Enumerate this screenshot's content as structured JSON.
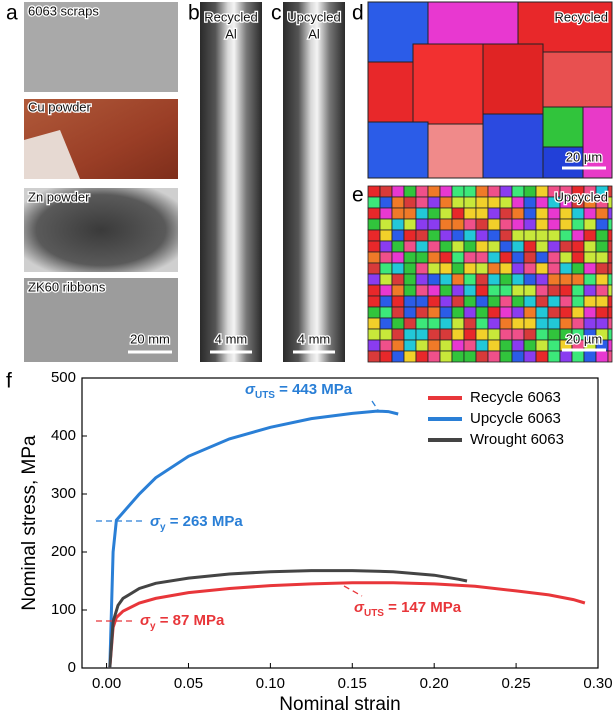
{
  "panels": {
    "a": {
      "label": "a",
      "images": [
        "6063 scraps",
        "Cu powder",
        "Zn powder",
        "ZK60 ribbons"
      ],
      "scale": "20 mm"
    },
    "b": {
      "label": "b",
      "text": [
        "Recycled",
        "Al"
      ],
      "scale": "4 mm"
    },
    "c": {
      "label": "c",
      "text": [
        "Upcycled",
        "Al"
      ],
      "scale": "4 mm"
    },
    "d": {
      "label": "d",
      "text": "Recycled",
      "scale": "20 µm"
    },
    "e": {
      "label": "e",
      "text": "Upcycled",
      "scale": "20 µm"
    },
    "f": {
      "label": "f"
    }
  },
  "chart_data": {
    "type": "line",
    "x_label": "Nominal strain",
    "y_label": "Nominal stress, MPa",
    "xlim": [
      -0.015,
      0.3
    ],
    "ylim": [
      0,
      500
    ],
    "xticks": [
      {
        "value": 0,
        "label": "0.00"
      },
      {
        "value": 0.05,
        "label": "0.05"
      },
      {
        "value": 0.1,
        "label": "0.10"
      },
      {
        "value": 0.15,
        "label": "0.15"
      },
      {
        "value": 0.2,
        "label": "0.20"
      },
      {
        "value": 0.25,
        "label": "0.25"
      },
      {
        "value": 0.3,
        "label": "0.30"
      }
    ],
    "yticks": [
      0,
      100,
      200,
      300,
      400,
      500
    ],
    "legend": "upper right",
    "series": [
      {
        "name": "Recycle 6063",
        "color": "#e8363a",
        "x": [
          0.002,
          0.004,
          0.006,
          0.01,
          0.02,
          0.03,
          0.05,
          0.075,
          0.1,
          0.125,
          0.15,
          0.175,
          0.2,
          0.225,
          0.25,
          0.27,
          0.285,
          0.292
        ],
        "values": [
          0,
          70,
          87,
          98,
          112,
          120,
          130,
          137,
          142,
          145,
          147,
          147,
          145,
          141,
          133,
          126,
          118,
          112
        ]
      },
      {
        "name": "Upcycle 6063",
        "color": "#2a7fd6",
        "x": [
          0.002,
          0.004,
          0.006,
          0.01,
          0.02,
          0.03,
          0.05,
          0.075,
          0.1,
          0.125,
          0.15,
          0.165,
          0.172,
          0.178
        ],
        "values": [
          0,
          200,
          255,
          268,
          300,
          328,
          365,
          395,
          415,
          430,
          439,
          443,
          442,
          438
        ]
      },
      {
        "name": "Wrought 6063",
        "color": "#444444",
        "x": [
          0.002,
          0.004,
          0.007,
          0.01,
          0.02,
          0.03,
          0.05,
          0.075,
          0.1,
          0.125,
          0.15,
          0.175,
          0.2,
          0.215,
          0.22
        ],
        "values": [
          0,
          80,
          108,
          120,
          137,
          146,
          155,
          162,
          166,
          168,
          168,
          166,
          160,
          153,
          150
        ]
      }
    ],
    "annotations": [
      {
        "symbol": "σ",
        "sub": "UTS",
        "text": " = 443 MPa",
        "color": "#2a7fd6"
      },
      {
        "symbol": "σ",
        "sub": "y",
        "text": " = 263 MPa",
        "color": "#2a7fd6"
      },
      {
        "symbol": "σ",
        "sub": "y",
        "text": " = 87 MPa",
        "color": "#e8363a"
      },
      {
        "symbol": "σ",
        "sub": "UTS",
        "text": " = 147 MPa",
        "color": "#e8363a"
      }
    ]
  }
}
